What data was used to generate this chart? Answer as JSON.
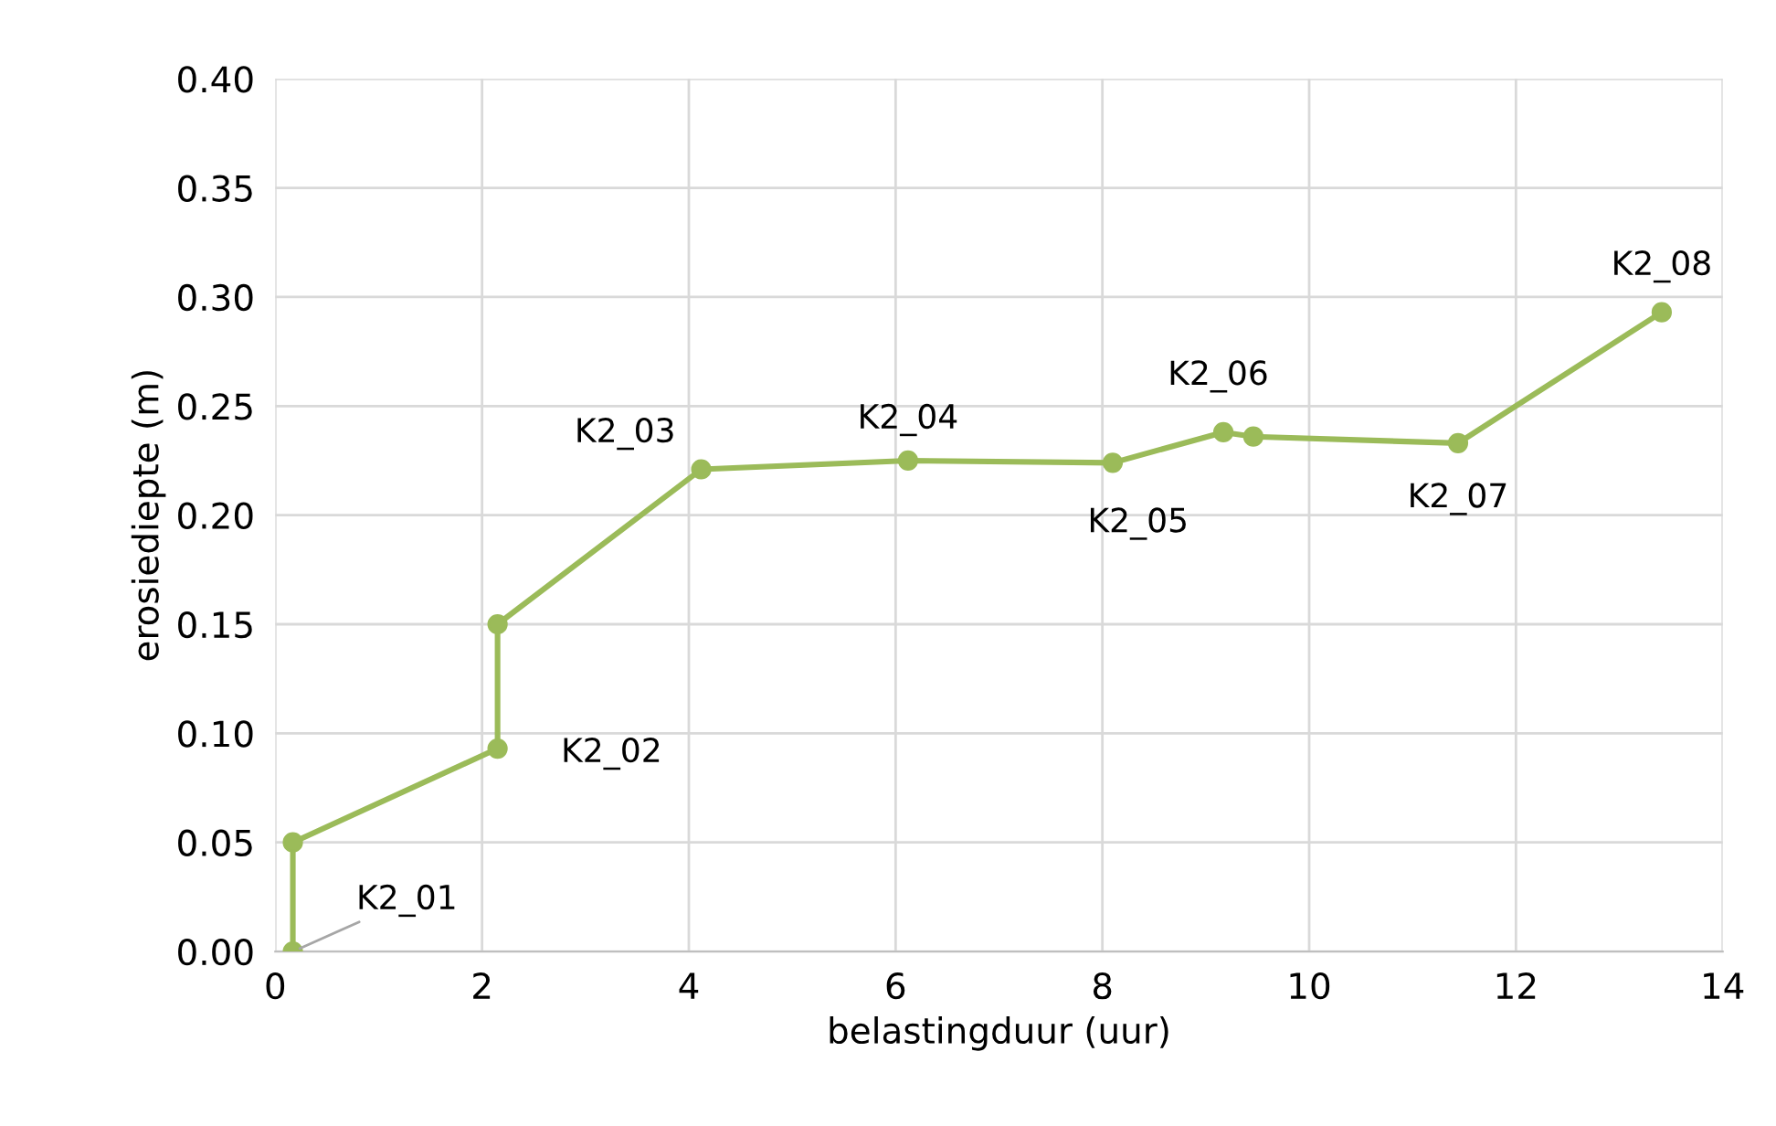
{
  "chart_data": {
    "type": "line",
    "xlabel": "belastingduur (uur)",
    "ylabel": "erosiediepte (m)",
    "x": [
      0.17,
      0.17,
      2.15,
      2.15,
      4.12,
      6.12,
      8.1,
      9.17,
      9.46,
      11.44,
      13.41
    ],
    "series": [
      {
        "color": "#9bbb59",
        "values": [
          0,
          0.05,
          0.093,
          0.15,
          0.221,
          0.225,
          0.224,
          0.238,
          0.236,
          0.233,
          0.293
        ]
      }
    ],
    "xlim": [
      0,
      14
    ],
    "xticks": [
      0,
      2,
      4,
      6,
      8,
      10,
      12,
      14
    ],
    "ylim": [
      0,
      0.4
    ],
    "yticks": [
      {
        "value": 0,
        "label": "0.00"
      },
      {
        "value": 0.05,
        "label": "0.05"
      },
      {
        "value": 0.1,
        "label": "0.10"
      },
      {
        "value": 0.15,
        "label": "0.15"
      },
      {
        "value": 0.2,
        "label": "0.20"
      },
      {
        "value": 0.25,
        "label": "0.25"
      },
      {
        "value": 0.3,
        "label": "0.30"
      },
      {
        "value": 0.35,
        "label": "0.35"
      },
      {
        "value": 0.4,
        "label": "0.40"
      }
    ],
    "grid": true,
    "marker": "circle",
    "line_style": "solid",
    "annotations": [
      {
        "text": "K2_01",
        "x": 0.17,
        "y": 0
      },
      {
        "text": "K2_02",
        "x": 2.15,
        "y": 0.093
      },
      {
        "text": "K2_03",
        "x": 4.12,
        "y": 0.221
      },
      {
        "text": "K2_04",
        "x": 6.12,
        "y": 0.225
      },
      {
        "text": "K2_05",
        "x": 8.1,
        "y": 0.224
      },
      {
        "text": "K2_06",
        "x": 9.17,
        "y": 0.238
      },
      {
        "text": "K2_07",
        "x": 11.44,
        "y": 0.233
      },
      {
        "text": "K2_08",
        "x": 13.41,
        "y": 0.293
      }
    ]
  }
}
